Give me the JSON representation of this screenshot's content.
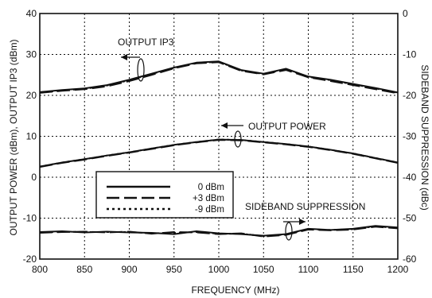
{
  "chart_data": {
    "type": "line",
    "xlabel": "FREQUENCY (MHz)",
    "ylabel_left": "OUTPUT POWER  (dBm), OUTPUT IP3 (dBm)",
    "ylabel_right": "SIDEBAND SUPPRESSION (dBc)",
    "xlim": [
      800,
      1200
    ],
    "ylim_left": [
      -20,
      40
    ],
    "ylim_right": [
      -60,
      0
    ],
    "x_ticks": [
      800,
      850,
      900,
      950,
      1000,
      1050,
      1100,
      1150,
      1200
    ],
    "y_ticks_left": [
      -20,
      -10,
      0,
      10,
      20,
      30,
      40
    ],
    "y_ticks_right": [
      -60,
      -50,
      -40,
      -30,
      -20,
      -10,
      0
    ],
    "grid": true,
    "legend": {
      "position": "center-left",
      "entries": [
        {
          "label": "0 dBm",
          "style": "solid"
        },
        {
          "label": "+3 dBm",
          "style": "long-dash"
        },
        {
          "label": "-9 dBm",
          "style": "dotted"
        }
      ]
    },
    "annotations": [
      {
        "text": "OUTPUT IP3"
      },
      {
        "text": "OUTPUT POWER"
      },
      {
        "text": "SIDEBAND SUPPRESSION"
      }
    ],
    "series": [
      {
        "name": "OUTPUT IP3",
        "drive": "0 dBm",
        "axis": "left",
        "style": "solid",
        "x": [
          800,
          825,
          850,
          875,
          900,
          925,
          950,
          975,
          1000,
          1025,
          1050,
          1075,
          1100,
          1125,
          1150,
          1175,
          1200
        ],
        "y": [
          20.8,
          21.3,
          21.7,
          22.5,
          23.8,
          25.3,
          26.8,
          28.0,
          28.3,
          26.2,
          25.3,
          26.5,
          24.6,
          23.8,
          22.8,
          21.8,
          20.7
        ]
      },
      {
        "name": "OUTPUT IP3",
        "drive": "+3 dBm",
        "axis": "left",
        "style": "long-dash",
        "x": [
          800,
          825,
          850,
          875,
          900,
          925,
          950,
          975,
          1000,
          1025,
          1050,
          1075,
          1100,
          1125,
          1150,
          1175,
          1200
        ],
        "y": [
          20.6,
          21.1,
          21.5,
          22.2,
          23.5,
          25.0,
          26.6,
          27.8,
          28.1,
          26.0,
          25.1,
          26.2,
          24.4,
          23.5,
          22.5,
          21.5,
          20.5
        ]
      },
      {
        "name": "OUTPUT IP3",
        "drive": "-9 dBm",
        "axis": "left",
        "style": "dotted",
        "x": [
          800,
          825,
          850,
          875,
          900,
          925,
          950,
          975,
          1000,
          1025,
          1050,
          1075,
          1100,
          1125,
          1150,
          1175,
          1200
        ],
        "y": [
          20.7,
          21.2,
          21.6,
          22.4,
          23.7,
          25.2,
          26.7,
          27.9,
          28.2,
          26.1,
          25.2,
          26.4,
          24.5,
          23.7,
          22.7,
          21.7,
          20.6
        ]
      },
      {
        "name": "OUTPUT POWER",
        "drive": "0 dBm",
        "axis": "left",
        "style": "solid",
        "x": [
          800,
          825,
          850,
          875,
          900,
          925,
          950,
          975,
          1000,
          1025,
          1050,
          1075,
          1100,
          1125,
          1150,
          1175,
          1200
        ],
        "y": [
          2.6,
          3.6,
          4.4,
          5.3,
          6.1,
          7.0,
          7.9,
          8.6,
          9.2,
          9.1,
          8.6,
          8.1,
          7.5,
          6.7,
          5.8,
          4.7,
          3.6
        ]
      },
      {
        "name": "OUTPUT POWER",
        "drive": "+3 dBm",
        "axis": "left",
        "style": "long-dash",
        "x": [
          800,
          825,
          850,
          875,
          900,
          925,
          950,
          975,
          1000,
          1025,
          1050,
          1075,
          1100,
          1125,
          1150,
          1175,
          1200
        ],
        "y": [
          2.5,
          3.5,
          4.3,
          5.2,
          6.0,
          6.9,
          7.8,
          8.5,
          9.1,
          9.0,
          8.5,
          8.0,
          7.4,
          6.6,
          5.7,
          4.6,
          3.5
        ]
      },
      {
        "name": "OUTPUT POWER",
        "drive": "-9 dBm",
        "axis": "left",
        "style": "dotted",
        "x": [
          800,
          825,
          850,
          875,
          900,
          925,
          950,
          975,
          1000,
          1025,
          1050,
          1075,
          1100,
          1125,
          1150,
          1175,
          1200
        ],
        "y": [
          2.6,
          3.6,
          4.4,
          5.3,
          6.1,
          7.0,
          7.9,
          8.6,
          9.2,
          9.1,
          8.6,
          8.1,
          7.5,
          6.7,
          5.8,
          4.7,
          3.6
        ]
      },
      {
        "name": "SIDEBAND SUPPRESSION",
        "drive": "0 dBm",
        "axis": "right",
        "style": "solid",
        "x": [
          800,
          825,
          850,
          875,
          900,
          925,
          950,
          975,
          1000,
          1025,
          1050,
          1075,
          1100,
          1125,
          1150,
          1175,
          1200
        ],
        "y": [
          -53.4,
          -53.2,
          -53.5,
          -53.3,
          -53.5,
          -53.6,
          -53.9,
          -53.2,
          -53.7,
          -53.9,
          -54.3,
          -53.9,
          -52.6,
          -52.9,
          -52.6,
          -51.9,
          -52.3
        ]
      },
      {
        "name": "SIDEBAND SUPPRESSION",
        "drive": "+3 dBm",
        "axis": "right",
        "style": "long-dash",
        "x": [
          800,
          825,
          850,
          875,
          900,
          925,
          950,
          975,
          1000,
          1025,
          1050,
          1075,
          1100,
          1125,
          1150,
          1175,
          1200
        ],
        "y": [
          -53.6,
          -53.4,
          -53.3,
          -53.5,
          -53.3,
          -53.8,
          -53.4,
          -53.5,
          -53.9,
          -53.7,
          -54.5,
          -54.1,
          -52.8,
          -53.0,
          -52.8,
          -52.1,
          -52.5
        ]
      },
      {
        "name": "SIDEBAND SUPPRESSION",
        "drive": "-9 dBm",
        "axis": "right",
        "style": "dotted",
        "x": [
          800,
          825,
          850,
          875,
          900,
          925,
          950,
          975,
          1000,
          1025,
          1050,
          1075,
          1100,
          1125,
          1150,
          1175,
          1200
        ],
        "y": [
          -53.5,
          -53.3,
          -53.4,
          -53.4,
          -53.4,
          -53.7,
          -53.6,
          -53.4,
          -53.8,
          -53.8,
          -54.4,
          -54.0,
          -52.7,
          -52.9,
          -52.7,
          -52.0,
          -52.4
        ]
      }
    ]
  }
}
